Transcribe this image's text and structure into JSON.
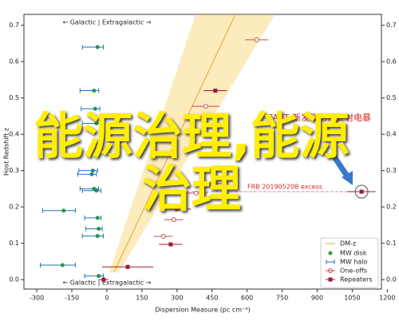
{
  "chart_data": {
    "type": "scatter",
    "x_label": "Dispersion Measure (pc cm⁻³)",
    "y_label": "Host Redshift z",
    "top_note": "← Galactic | Extragalactic →",
    "bottom_note": "← Galactic | Extragalactic →",
    "annotation": "FAST 新发现的重复射电暴",
    "excess_label": "FRB 20190520B excess",
    "overlay_text": "能源治理,能源治理",
    "xlim": [
      -355,
      1175
    ],
    "ylim": [
      -0.026,
      0.73
    ],
    "xticks": [
      -300,
      -150,
      0,
      150,
      300,
      450,
      600,
      750,
      900,
      1050,
      1200
    ],
    "yticks": [
      {
        "value": 0,
        "label": "0.0"
      },
      0.1,
      0.2,
      0.3,
      0.4,
      0.5,
      0.6,
      0.7
    ],
    "dmz": {
      "name": "DM-z",
      "color": "#f5c542",
      "z": [
        0.02,
        0.73
      ],
      "mean": [
        30,
        550
      ],
      "lower": [
        10,
        380
      ],
      "upper": [
        50,
        720
      ]
    },
    "series": [
      {
        "name": "MW disk",
        "color": "#2ca02c",
        "marker": "dot",
        "x": [
          -40,
          -55,
          -50,
          -45,
          -60,
          -65,
          -55,
          -45,
          -185,
          -40,
          -35,
          -40,
          -190,
          -35
        ],
        "values": [
          0.64,
          0.52,
          0.47,
          0.43,
          0.3,
          0.29,
          0.25,
          0.245,
          0.19,
          0.17,
          0.14,
          0.12,
          0.04,
          0.01
        ]
      },
      {
        "name": "MW halo",
        "color": "#1f77b4",
        "marker": "bar",
        "x": [
          -60,
          -75,
          -70,
          -65,
          -80,
          -85,
          -75,
          -65,
          -205,
          -60,
          -55,
          -60,
          -210,
          -55
        ],
        "xerr": [
          45,
          40,
          40,
          40,
          40,
          40,
          40,
          40,
          70,
          35,
          35,
          45,
          75,
          40
        ],
        "values": [
          0.64,
          0.52,
          0.47,
          0.43,
          0.3,
          0.29,
          0.25,
          0.245,
          0.19,
          0.17,
          0.14,
          0.12,
          0.04,
          0.01
        ]
      },
      {
        "name": "One-offs",
        "color": "#c44e52",
        "marker": "hollow",
        "x": [
          641,
          423,
          382,
          286,
          242
        ],
        "xerr": [
          50,
          60,
          50,
          40,
          40
        ],
        "values": [
          0.66,
          0.477,
          0.238,
          0.165,
          0.119
        ]
      },
      {
        "name": "Repeaters",
        "color": "#a01830",
        "marker": "square",
        "x": [
          464,
          1090,
          300,
          450,
          273,
          89,
          -14
        ],
        "xerr": [
          50,
          60,
          60,
          50,
          50,
          110,
          20
        ],
        "values": [
          0.52,
          0.242,
          0.194,
          0.264,
          0.097,
          0.035,
          0.0
        ]
      }
    ]
  }
}
